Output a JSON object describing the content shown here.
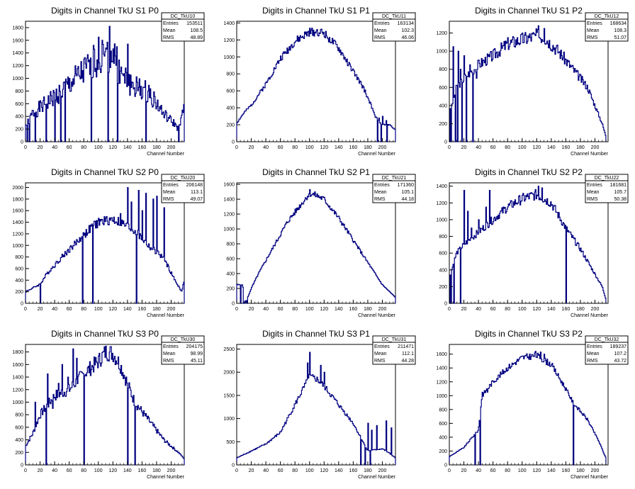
{
  "common": {
    "xlabel": "Channel Number",
    "stat_labels": [
      "Entries",
      "Mean",
      "RMS"
    ]
  },
  "chart_data": [
    {
      "type": "histogram",
      "title": "Digits in Channel TkU S1 P0",
      "stats": {
        "name": "DC_TkU10",
        "entries": "153511",
        "mean": "108.5",
        "rms": "48.89"
      },
      "xlim": [
        0,
        218
      ],
      "ylim": [
        0,
        1900
      ],
      "xticks": [
        0,
        20,
        40,
        60,
        80,
        100,
        120,
        140,
        160,
        180,
        200
      ],
      "yticks": [
        0,
        200,
        400,
        600,
        800,
        1000,
        1200,
        1400,
        1600,
        1800
      ],
      "x_edges": [
        0,
        218
      ],
      "profile": [
        [
          0,
          250
        ],
        [
          10,
          450
        ],
        [
          30,
          620
        ],
        [
          50,
          800
        ],
        [
          70,
          1000
        ],
        [
          90,
          1200
        ],
        [
          110,
          1350
        ],
        [
          120,
          1450
        ],
        [
          130,
          1050
        ],
        [
          150,
          860
        ],
        [
          170,
          780
        ],
        [
          190,
          430
        ],
        [
          205,
          280
        ],
        [
          210,
          200
        ],
        [
          218,
          520
        ]
      ],
      "spikes": [
        [
          115,
          1820
        ],
        [
          100,
          1650
        ],
        [
          140,
          1540
        ],
        [
          125,
          1500
        ],
        [
          93,
          1520
        ],
        [
          105,
          1600
        ],
        [
          108,
          1350
        ],
        [
          128,
          1290
        ]
      ],
      "drops": [
        [
          2,
          0
        ],
        [
          5,
          0
        ],
        [
          13,
          0
        ],
        [
          28,
          0
        ],
        [
          40,
          0
        ],
        [
          48,
          0
        ],
        [
          54,
          0
        ],
        [
          90,
          0
        ],
        [
          113,
          0
        ],
        [
          126,
          0
        ],
        [
          165,
          0
        ],
        [
          210,
          0
        ]
      ],
      "noise": 0.22,
      "seed": 1
    },
    {
      "type": "histogram",
      "title": "Digits in Channel TkU S1 P1",
      "stats": {
        "name": "DC_TkU11",
        "entries": "163134",
        "mean": "102.3",
        "rms": "46.06"
      },
      "xlim": [
        0,
        218
      ],
      "ylim": [
        0,
        1420
      ],
      "xticks": [
        0,
        20,
        40,
        60,
        80,
        100,
        120,
        140,
        160,
        180,
        200
      ],
      "yticks": [
        0,
        200,
        400,
        600,
        800,
        1000,
        1200,
        1400
      ],
      "x_edges": [
        0,
        218
      ],
      "profile": [
        [
          0,
          220
        ],
        [
          10,
          340
        ],
        [
          20,
          430
        ],
        [
          40,
          680
        ],
        [
          60,
          980
        ],
        [
          80,
          1180
        ],
        [
          100,
          1290
        ],
        [
          110,
          1300
        ],
        [
          120,
          1280
        ],
        [
          140,
          1100
        ],
        [
          160,
          830
        ],
        [
          175,
          620
        ],
        [
          185,
          420
        ],
        [
          190,
          300
        ],
        [
          200,
          200
        ],
        [
          210,
          200
        ],
        [
          218,
          140
        ]
      ],
      "spikes": [
        [
          195,
          280
        ],
        [
          200,
          300
        ],
        [
          205,
          250
        ]
      ],
      "drops": [
        [
          193,
          0
        ],
        [
          198,
          0
        ],
        [
          206,
          0
        ]
      ],
      "noise": 0.04,
      "seed": 2
    },
    {
      "type": "histogram",
      "title": "Digits in Channel TkU S1 P2",
      "stats": {
        "name": "DC_TkU12",
        "entries": "168634",
        "mean": "108.3",
        "rms": "51.07"
      },
      "xlim": [
        0,
        218
      ],
      "ylim": [
        0,
        1330
      ],
      "xticks": [
        0,
        20,
        40,
        60,
        80,
        100,
        120,
        140,
        160,
        180,
        200
      ],
      "yticks": [
        0,
        200,
        400,
        600,
        800,
        1000,
        1200
      ],
      "x_edges": [
        0,
        215
      ],
      "profile": [
        [
          0,
          300
        ],
        [
          10,
          600
        ],
        [
          20,
          700
        ],
        [
          40,
          850
        ],
        [
          60,
          950
        ],
        [
          80,
          1080
        ],
        [
          100,
          1130
        ],
        [
          120,
          1170
        ],
        [
          130,
          1160
        ],
        [
          150,
          1000
        ],
        [
          170,
          800
        ],
        [
          190,
          600
        ],
        [
          200,
          400
        ],
        [
          210,
          200
        ],
        [
          215,
          60
        ]
      ],
      "spikes": [
        [
          5,
          1050
        ],
        [
          12,
          1000
        ],
        [
          20,
          950
        ],
        [
          15,
          800
        ],
        [
          28,
          850
        ],
        [
          37,
          700
        ],
        [
          122,
          1280
        ],
        [
          130,
          1250
        ]
      ],
      "drops": [
        [
          0,
          0
        ],
        [
          2,
          0
        ],
        [
          8,
          0
        ],
        [
          11,
          0
        ],
        [
          17,
          0
        ],
        [
          23,
          0
        ],
        [
          32,
          0
        ]
      ],
      "noise": 0.07,
      "seed": 3
    },
    {
      "type": "histogram",
      "title": "Digits in Channel TkU S2 P0",
      "stats": {
        "name": "DC_TkU20",
        "entries": "206148",
        "mean": "113.1",
        "rms": "49.07"
      },
      "xlim": [
        0,
        218
      ],
      "ylim": [
        0,
        2080
      ],
      "xticks": [
        0,
        20,
        40,
        60,
        80,
        100,
        120,
        140,
        160,
        180,
        200
      ],
      "yticks": [
        0,
        200,
        400,
        600,
        800,
        1000,
        1200,
        1400,
        1600,
        1800,
        2000
      ],
      "x_edges": [
        0,
        218
      ],
      "profile": [
        [
          0,
          200
        ],
        [
          20,
          330
        ],
        [
          30,
          520
        ],
        [
          50,
          800
        ],
        [
          70,
          1050
        ],
        [
          90,
          1300
        ],
        [
          100,
          1400
        ],
        [
          120,
          1450
        ],
        [
          130,
          1400
        ],
        [
          150,
          1250
        ],
        [
          170,
          980
        ],
        [
          190,
          780
        ],
        [
          205,
          400
        ],
        [
          215,
          200
        ],
        [
          218,
          420
        ]
      ],
      "spikes": [
        [
          140,
          2000
        ],
        [
          155,
          1950
        ],
        [
          165,
          1900
        ],
        [
          180,
          1850
        ],
        [
          145,
          1750
        ],
        [
          175,
          1800
        ],
        [
          190,
          1650
        ],
        [
          130,
          1550
        ],
        [
          160,
          1600
        ]
      ],
      "drops": [
        [
          20,
          0
        ],
        [
          78,
          0
        ],
        [
          92,
          0
        ],
        [
          152,
          0
        ]
      ],
      "noise": 0.06,
      "seed": 4
    },
    {
      "type": "histogram",
      "title": "Digits in Channel TkU S2 P1",
      "stats": {
        "name": "DC_TkU21",
        "entries": "171360",
        "mean": "105.1",
        "rms": "44.18"
      },
      "xlim": [
        0,
        218
      ],
      "ylim": [
        0,
        1620
      ],
      "xticks": [
        0,
        20,
        40,
        60,
        80,
        100,
        120,
        140,
        160,
        180,
        200
      ],
      "yticks": [
        0,
        200,
        400,
        600,
        800,
        1000,
        1200,
        1400,
        1600
      ],
      "x_edges": [
        0,
        218
      ],
      "profile": [
        [
          0,
          250
        ],
        [
          8,
          250
        ],
        [
          12,
          0
        ],
        [
          20,
          200
        ],
        [
          30,
          400
        ],
        [
          50,
          750
        ],
        [
          70,
          1100
        ],
        [
          90,
          1350
        ],
        [
          100,
          1480
        ],
        [
          110,
          1450
        ],
        [
          120,
          1400
        ],
        [
          140,
          1150
        ],
        [
          160,
          850
        ],
        [
          180,
          550
        ],
        [
          200,
          250
        ],
        [
          218,
          80
        ]
      ],
      "spikes": [
        [
          100,
          1530
        ],
        [
          3,
          250
        ],
        [
          7,
          250
        ]
      ],
      "drops": [
        [
          5,
          0
        ],
        [
          9,
          0
        ],
        [
          10,
          0
        ],
        [
          14,
          0
        ]
      ],
      "noise": 0.03,
      "seed": 5
    },
    {
      "type": "histogram",
      "title": "Digits in Channel TkU S2 P2",
      "stats": {
        "name": "DC_TkU22",
        "entries": "181681",
        "mean": "105.7",
        "rms": "50.38"
      },
      "xlim": [
        0,
        218
      ],
      "ylim": [
        0,
        1440
      ],
      "xticks": [
        0,
        20,
        40,
        60,
        80,
        100,
        120,
        140,
        160,
        180,
        200
      ],
      "yticks": [
        0,
        200,
        400,
        600,
        800,
        1000,
        1200,
        1400
      ],
      "x_edges": [
        0,
        215
      ],
      "profile": [
        [
          0,
          300
        ],
        [
          10,
          600
        ],
        [
          20,
          700
        ],
        [
          40,
          850
        ],
        [
          60,
          1000
        ],
        [
          80,
          1150
        ],
        [
          100,
          1250
        ],
        [
          120,
          1300
        ],
        [
          140,
          1200
        ],
        [
          160,
          900
        ],
        [
          180,
          650
        ],
        [
          200,
          350
        ],
        [
          210,
          200
        ],
        [
          215,
          50
        ]
      ],
      "spikes": [
        [
          20,
          1350
        ],
        [
          55,
          1350
        ],
        [
          50,
          1150
        ],
        [
          40,
          1000
        ],
        [
          25,
          1100
        ],
        [
          30,
          900
        ],
        [
          122,
          1400
        ],
        [
          127,
          1380
        ]
      ],
      "drops": [
        [
          0,
          0
        ],
        [
          2,
          0
        ],
        [
          6,
          0
        ],
        [
          15,
          0
        ],
        [
          160,
          0
        ]
      ],
      "noise": 0.05,
      "seed": 6
    },
    {
      "type": "histogram",
      "title": "Digits in Channel TkU S3 P0",
      "stats": {
        "name": "DC_TkU30",
        "entries": "204175",
        "mean": "98.99",
        "rms": "45.11"
      },
      "xlim": [
        0,
        218
      ],
      "ylim": [
        0,
        1920
      ],
      "xticks": [
        0,
        20,
        40,
        60,
        80,
        100,
        120,
        140,
        160,
        180,
        200
      ],
      "yticks": [
        0,
        200,
        400,
        600,
        800,
        1000,
        1200,
        1400,
        1600,
        1800
      ],
      "x_edges": [
        0,
        218
      ],
      "profile": [
        [
          0,
          300
        ],
        [
          10,
          500
        ],
        [
          20,
          800
        ],
        [
          40,
          1100
        ],
        [
          60,
          1200
        ],
        [
          80,
          1450
        ],
        [
          100,
          1650
        ],
        [
          110,
          1800
        ],
        [
          120,
          1780
        ],
        [
          130,
          1600
        ],
        [
          150,
          1000
        ],
        [
          170,
          700
        ],
        [
          190,
          400
        ],
        [
          210,
          200
        ],
        [
          218,
          100
        ]
      ],
      "spikes": [
        [
          65,
          1850
        ],
        [
          50,
          1600
        ],
        [
          30,
          1450
        ],
        [
          45,
          1300
        ],
        [
          70,
          1700
        ],
        [
          58,
          1400
        ],
        [
          80,
          1500
        ],
        [
          13,
          1000
        ],
        [
          37,
          900
        ]
      ],
      "drops": [
        [
          80,
          0
        ],
        [
          140,
          0
        ],
        [
          150,
          0
        ],
        [
          28,
          0
        ]
      ],
      "noise": 0.08,
      "seed": 7
    },
    {
      "type": "histogram",
      "title": "Digits in Channel TkU S3 P1",
      "stats": {
        "name": "DC_TkU31",
        "entries": "211471",
        "mean": "112.1",
        "rms": "44.28"
      },
      "xlim": [
        0,
        218
      ],
      "ylim": [
        0,
        2600
      ],
      "xticks": [
        0,
        20,
        40,
        60,
        80,
        100,
        120,
        140,
        160,
        180,
        200
      ],
      "yticks": [
        0,
        500,
        1000,
        1500,
        2000,
        2500
      ],
      "x_edges": [
        0,
        218
      ],
      "profile": [
        [
          0,
          150
        ],
        [
          20,
          300
        ],
        [
          40,
          450
        ],
        [
          60,
          700
        ],
        [
          80,
          1300
        ],
        [
          90,
          1600
        ],
        [
          100,
          1900
        ],
        [
          110,
          1850
        ],
        [
          120,
          1700
        ],
        [
          140,
          1300
        ],
        [
          160,
          900
        ],
        [
          170,
          600
        ],
        [
          180,
          300
        ],
        [
          200,
          350
        ],
        [
          210,
          250
        ],
        [
          218,
          150
        ]
      ],
      "spikes": [
        [
          100,
          2430
        ],
        [
          97,
          2200
        ],
        [
          115,
          2150
        ],
        [
          120,
          2000
        ],
        [
          180,
          900
        ],
        [
          185,
          750
        ],
        [
          192,
          850
        ],
        [
          205,
          950
        ],
        [
          212,
          800
        ]
      ],
      "drops": [
        [
          170,
          0
        ],
        [
          176,
          0
        ],
        [
          183,
          0
        ]
      ],
      "noise": 0.04,
      "seed": 8
    },
    {
      "type": "histogram",
      "title": "Digits in Channel TkU S3 P2",
      "stats": {
        "name": "DC_TkU32",
        "entries": "189237",
        "mean": "107.2",
        "rms": "43.72"
      },
      "xlim": [
        0,
        218
      ],
      "ylim": [
        0,
        1740
      ],
      "xticks": [
        0,
        20,
        40,
        60,
        80,
        100,
        120,
        140,
        160,
        180,
        200
      ],
      "yticks": [
        0,
        200,
        400,
        600,
        800,
        1000,
        1200,
        1400,
        1600
      ],
      "x_edges": [
        0,
        215
      ],
      "profile": [
        [
          0,
          120
        ],
        [
          20,
          250
        ],
        [
          30,
          380
        ],
        [
          40,
          500
        ],
        [
          45,
          1000
        ],
        [
          60,
          1200
        ],
        [
          80,
          1400
        ],
        [
          100,
          1550
        ],
        [
          120,
          1580
        ],
        [
          140,
          1450
        ],
        [
          160,
          1100
        ],
        [
          170,
          900
        ],
        [
          190,
          650
        ],
        [
          205,
          350
        ],
        [
          215,
          100
        ]
      ],
      "spikes": [
        [
          45,
          1050
        ],
        [
          52,
          1050
        ],
        [
          118,
          1640
        ],
        [
          125,
          1630
        ],
        [
          130,
          1600
        ]
      ],
      "drops": [
        [
          35,
          0
        ],
        [
          42,
          0
        ],
        [
          170,
          0
        ]
      ],
      "noise": 0.03,
      "seed": 9
    }
  ]
}
